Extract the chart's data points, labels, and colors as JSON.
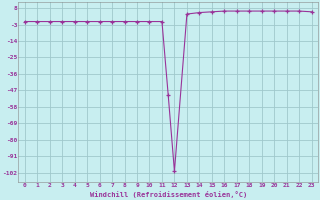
{
  "x": [
    0,
    1,
    2,
    3,
    4,
    5,
    6,
    7,
    8,
    9,
    10,
    11,
    11.5,
    12,
    13,
    14,
    15,
    16,
    17,
    18,
    19,
    20,
    21,
    22,
    23
  ],
  "y": [
    -1,
    -1,
    -1,
    -1,
    -1,
    -1,
    -1,
    -1,
    -1,
    -1,
    -1,
    -1,
    -50,
    -101,
    4,
    5,
    5.5,
    6,
    6,
    6,
    6,
    6,
    6,
    6,
    5.5
  ],
  "line_color": "#993399",
  "bg_color": "#c8eef0",
  "grid_color": "#a0c8cc",
  "xlabel": "Windchill (Refroidissement éolien,°C)",
  "yticks": [
    8,
    -3,
    -14,
    -25,
    -36,
    -47,
    -58,
    -69,
    -80,
    -91,
    -102
  ],
  "xticks": [
    0,
    1,
    2,
    3,
    4,
    5,
    6,
    7,
    8,
    9,
    10,
    11,
    12,
    13,
    14,
    15,
    16,
    17,
    18,
    19,
    20,
    21,
    22,
    23
  ],
  "ylim": [
    -108,
    12
  ],
  "xlim": [
    -0.5,
    23.5
  ]
}
